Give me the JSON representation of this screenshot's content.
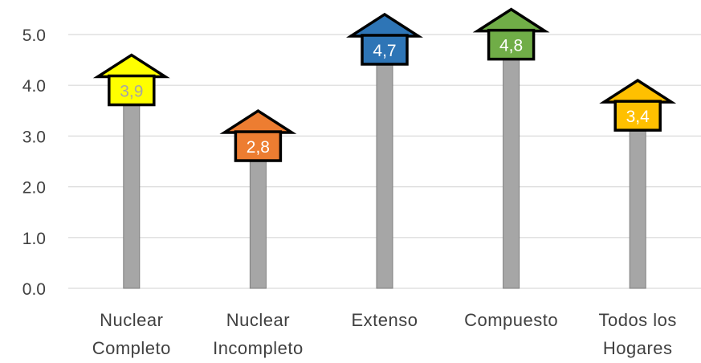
{
  "chart_data": {
    "type": "bar",
    "title": "",
    "xlabel": "",
    "ylabel": "",
    "ylim": [
      0,
      5
    ],
    "y_ticks": [
      "0.0",
      "1.0",
      "2.0",
      "3.0",
      "4.0",
      "5.0"
    ],
    "grid": true,
    "categories": [
      [
        "Nuclear",
        "Completo"
      ],
      [
        "Nuclear",
        "Incompleto"
      ],
      [
        "Extenso"
      ],
      [
        "Compuesto"
      ],
      [
        "Todos los",
        "Hogares"
      ]
    ],
    "values": [
      3.9,
      2.8,
      4.7,
      4.8,
      3.4
    ],
    "data_labels": [
      "3,9",
      "2,8",
      "4,7",
      "4,8",
      "3,4"
    ],
    "house_colors": [
      "#ffff00",
      "#ed7d31",
      "#2e75b6",
      "#70ad47",
      "#ffc000"
    ],
    "label_colors": [
      "#a6a6a6",
      "#ffffff",
      "#ffffff",
      "#ffffff",
      "#ffffff"
    ],
    "bar_color": "#a6a6a6"
  }
}
